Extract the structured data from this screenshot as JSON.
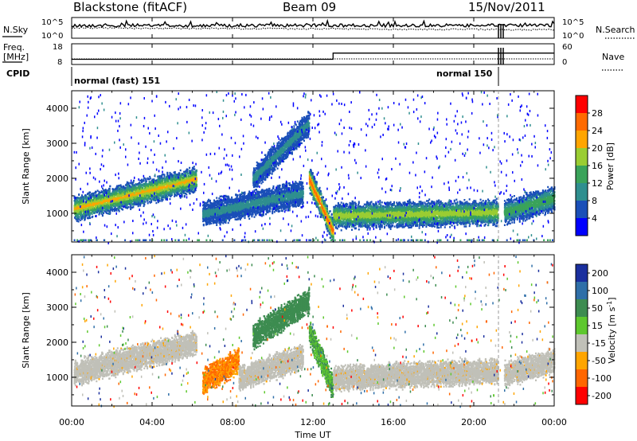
{
  "header": {
    "station": "Blackstone (fitACF)",
    "beam": "Beam 09",
    "date": "15/Nov/2011"
  },
  "noise_panel": {
    "left_label": "N.Sky",
    "right_label": "N.Search",
    "y_ticks": [
      "10^5",
      "10^0"
    ]
  },
  "freq_panel": {
    "left_label_line1": "Freq.",
    "left_label_line2": "[MHz]",
    "left_ticks": [
      "18",
      "8"
    ],
    "right_label": "Nave",
    "right_ticks": [
      "60",
      "0"
    ]
  },
  "cpid": {
    "label": "CPID",
    "first": "normal (fast) 151",
    "second": "normal 150"
  },
  "power_panel": {
    "ylabel": "Slant Range [km]",
    "y_ticks": [
      "1000",
      "2000",
      "3000",
      "4000"
    ],
    "colorbar_label": "Power [dB]",
    "colorbar_ticks": [
      "28",
      "24",
      "20",
      "16",
      "12",
      "8",
      "4"
    ],
    "colors": [
      "#0000ff",
      "#1a4fb8",
      "#2f8f8f",
      "#3aa35a",
      "#9acd32",
      "#ffa500",
      "#ff6a00",
      "#ff0000"
    ]
  },
  "velocity_panel": {
    "ylabel": "Slant Range [km]",
    "y_ticks": [
      "1000",
      "2000",
      "3000",
      "4000"
    ],
    "colorbar_label": "Velocity [m s",
    "colorbar_label_exp": "-1",
    "colorbar_label_end": "]",
    "colorbar_ticks": [
      "200",
      "100",
      "50",
      "15",
      "-15",
      "-50",
      "-100",
      "-200"
    ],
    "colors": [
      "#1a2f9e",
      "#2f6fa8",
      "#3d8c50",
      "#5ec82e",
      "#c0c0b8",
      "#ffa500",
      "#ff6600",
      "#ff0000"
    ]
  },
  "x_axis": {
    "label": "Time UT",
    "ticks": [
      "00:00",
      "04:00",
      "08:00",
      "12:00",
      "16:00",
      "20:00",
      "00:00"
    ]
  },
  "chart_data": [
    {
      "type": "line",
      "title": "Blackstone (fitACF)",
      "panel": "noise",
      "series": [
        {
          "name": "N.Sky"
        },
        {
          "name": "N.Search"
        }
      ],
      "x_range_hours": [
        0,
        24
      ],
      "yscale": "log",
      "ylim": [
        "10^0",
        "10^5"
      ]
    },
    {
      "type": "line",
      "panel": "frequency",
      "series": [
        {
          "name": "Freq.",
          "x_hours": [
            0,
            13.0,
            13.0,
            24
          ],
          "values": [
            10.5,
            10.5,
            13.5,
            13.5
          ]
        },
        {
          "name": "Nave",
          "x_hours": [
            0,
            24
          ],
          "values": [
            30,
            30
          ]
        }
      ],
      "ylim": [
        8,
        18
      ],
      "y2lim": [
        0,
        60
      ]
    },
    {
      "type": "heatmap",
      "panel": "power",
      "xlabel": "Time UT",
      "ylabel": "Slant Range [km]",
      "ylim": [
        180,
        4500
      ],
      "colorbar": "Power [dB]",
      "bands": [
        {
          "start_h": 0.1,
          "end_h": 6.2,
          "range_start_km": 1150,
          "range_end_km": 2000,
          "peak_db": 22
        },
        {
          "start_h": 6.5,
          "end_h": 11.5,
          "range_start_km": 1000,
          "range_end_km": 1600,
          "peak_db": 10
        },
        {
          "start_h": 9.0,
          "end_h": 11.8,
          "range_start_km": 2000,
          "range_end_km": 3600,
          "peak_db": 10
        },
        {
          "start_h": 11.8,
          "end_h": 13.0,
          "range_start_km": 2000,
          "range_end_km": 500,
          "peak_db": 28
        },
        {
          "start_h": 13.0,
          "end_h": 21.2,
          "range_start_km": 950,
          "range_end_km": 1050,
          "peak_db": 20
        },
        {
          "start_h": 21.5,
          "end_h": 24,
          "range_start_km": 1050,
          "range_end_km": 1450,
          "peak_db": 16
        }
      ]
    },
    {
      "type": "heatmap",
      "panel": "velocity",
      "xlabel": "Time UT",
      "ylabel": "Slant Range [km]",
      "ylim": [
        180,
        4500
      ],
      "colorbar": "Velocity [m s-1]",
      "bands": [
        {
          "start_h": 0.1,
          "end_h": 6.2,
          "range_start_km": 1150,
          "range_end_km": 2000,
          "velocity": 0
        },
        {
          "start_h": 6.5,
          "end_h": 8.3,
          "range_start_km": 900,
          "range_end_km": 1500,
          "velocity": -50
        },
        {
          "start_h": 8.3,
          "end_h": 11.5,
          "range_start_km": 1000,
          "range_end_km": 1600,
          "velocity": 0
        },
        {
          "start_h": 9.0,
          "end_h": 11.8,
          "range_start_km": 2200,
          "range_end_km": 3200,
          "velocity": 50
        },
        {
          "start_h": 11.8,
          "end_h": 13.0,
          "range_start_km": 2300,
          "range_end_km": 700,
          "velocity": 30
        },
        {
          "start_h": 13.0,
          "end_h": 21.2,
          "range_start_km": 1000,
          "range_end_km": 1200,
          "velocity": 0
        },
        {
          "start_h": 21.5,
          "end_h": 24,
          "range_start_km": 1100,
          "range_end_km": 1500,
          "velocity": 0
        }
      ]
    }
  ]
}
